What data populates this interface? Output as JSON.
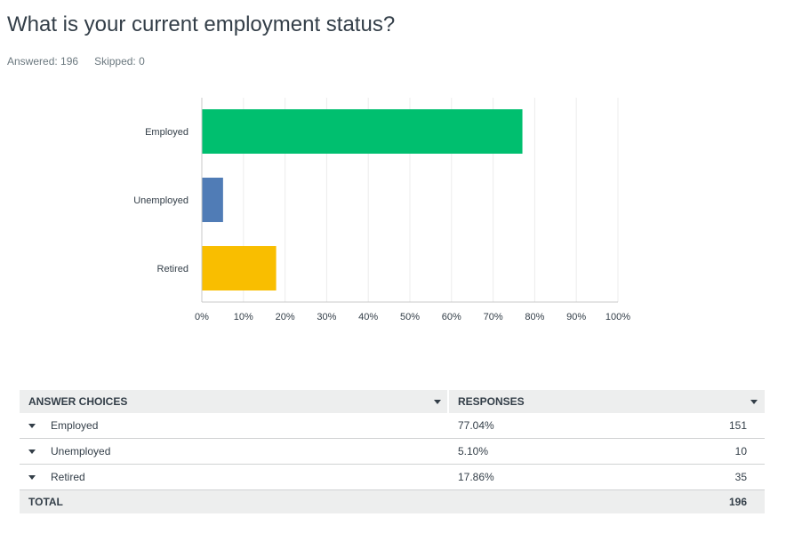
{
  "question": {
    "title": "What is your current employment status?",
    "answered_label": "Answered: 196",
    "skipped_label": "Skipped: 0"
  },
  "chart_data": {
    "type": "bar",
    "orientation": "horizontal",
    "categories": [
      "Employed",
      "Unemployed",
      "Retired"
    ],
    "values": [
      77.04,
      5.1,
      17.86
    ],
    "colors": [
      "#00bf6f",
      "#507cb6",
      "#f9be00"
    ],
    "xlim": [
      0,
      100
    ],
    "xticks": [
      "0%",
      "10%",
      "20%",
      "30%",
      "40%",
      "50%",
      "60%",
      "70%",
      "80%",
      "90%",
      "100%"
    ],
    "grid": true
  },
  "table": {
    "headers": {
      "answer_choices": "ANSWER CHOICES",
      "responses": "RESPONSES"
    },
    "rows": [
      {
        "choice": "Employed",
        "percent": "77.04%",
        "count": "151"
      },
      {
        "choice": "Unemployed",
        "percent": "5.10%",
        "count": "10"
      },
      {
        "choice": "Retired",
        "percent": "17.86%",
        "count": "35"
      }
    ],
    "total": {
      "label": "TOTAL",
      "count": "196"
    }
  }
}
